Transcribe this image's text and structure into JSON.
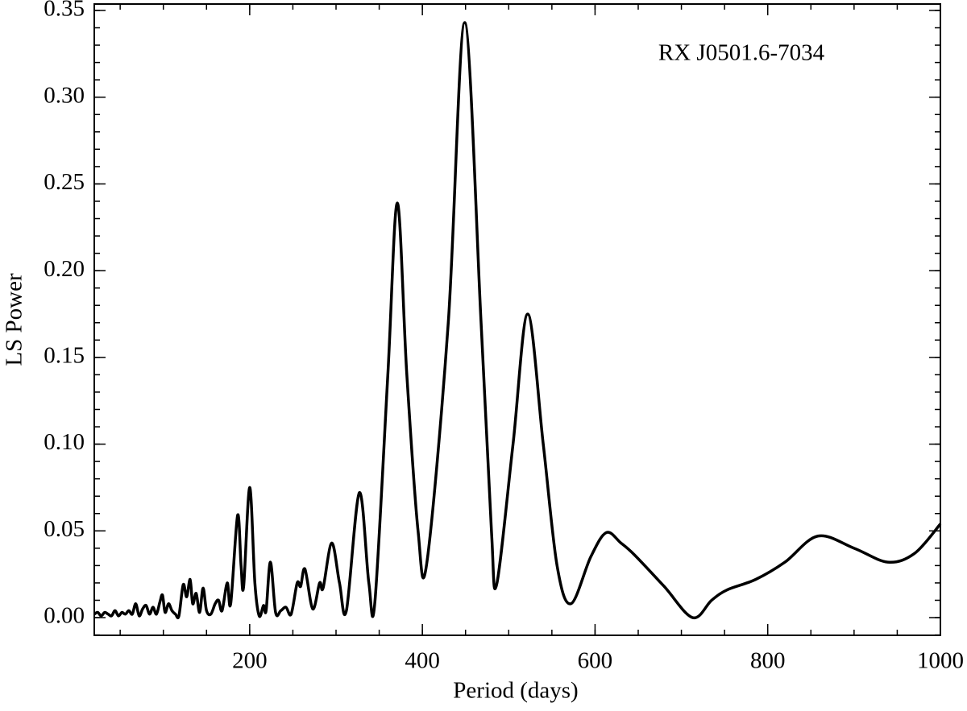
{
  "chart_data": {
    "type": "line",
    "xlabel": "Period (days)",
    "ylabel": "LS Power",
    "annotation": "RX J0501.6-7034",
    "x": [
      20,
      24,
      28,
      32,
      36,
      40,
      44,
      48,
      52,
      56,
      60,
      64,
      68,
      72,
      76,
      80,
      84,
      88,
      92,
      96,
      99,
      102,
      106,
      110,
      114,
      118,
      123,
      127,
      131,
      134,
      138,
      142,
      146,
      150,
      155,
      160,
      164,
      168,
      174,
      178,
      186,
      190,
      193,
      200,
      206,
      211,
      216,
      219,
      224,
      230,
      236,
      242,
      248,
      255,
      259,
      264,
      273,
      281,
      285,
      295,
      304,
      312,
      327,
      338,
      345,
      360,
      371,
      382,
      395,
      405,
      430,
      449,
      468,
      480,
      486,
      505,
      522,
      540,
      556,
      572,
      595,
      613,
      630,
      646,
      680,
      713,
      735,
      753,
      786,
      820,
      858,
      900,
      939,
      970,
      1000
    ],
    "series": [
      {
        "name": "LS Power",
        "color": "#000000",
        "values": [
          0.002,
          0.003,
          0.001,
          0.003,
          0.002,
          0.001,
          0.004,
          0.001,
          0.003,
          0.002,
          0.004,
          0.002,
          0.008,
          0.001,
          0.005,
          0.007,
          0.002,
          0.006,
          0.002,
          0.009,
          0.013,
          0.003,
          0.008,
          0.004,
          0.002,
          0.001,
          0.019,
          0.012,
          0.022,
          0.008,
          0.014,
          0.003,
          0.017,
          0.004,
          0.002,
          0.008,
          0.01,
          0.004,
          0.02,
          0.008,
          0.059,
          0.03,
          0.018,
          0.075,
          0.02,
          0.001,
          0.007,
          0.004,
          0.032,
          0.003,
          0.004,
          0.006,
          0.002,
          0.02,
          0.018,
          0.028,
          0.005,
          0.02,
          0.017,
          0.043,
          0.02,
          0.004,
          0.072,
          0.02,
          0.009,
          0.14,
          0.239,
          0.14,
          0.05,
          0.031,
          0.17,
          0.343,
          0.17,
          0.05,
          0.019,
          0.1,
          0.175,
          0.1,
          0.03,
          0.008,
          0.035,
          0.049,
          0.043,
          0.036,
          0.018,
          0.0,
          0.01,
          0.016,
          0.022,
          0.032,
          0.047,
          0.04,
          0.032,
          0.037,
          0.054
        ]
      }
    ],
    "xlim": [
      20,
      1000
    ],
    "ylim": [
      -0.0102,
      0.3537
    ],
    "xticks": [
      200,
      400,
      600,
      800,
      1000
    ],
    "yticks": [
      {
        "value": 0,
        "label": "0.00"
      },
      {
        "value": 0.05,
        "label": "0.05"
      },
      {
        "value": 0.1,
        "label": "0.10"
      },
      {
        "value": 0.15,
        "label": "0.15"
      },
      {
        "value": 0.2,
        "label": "0.20"
      },
      {
        "value": 0.25,
        "label": "0.25"
      },
      {
        "value": 0.3,
        "label": "0.30"
      },
      {
        "value": 0.35,
        "label": "0.35"
      }
    ],
    "grid": false
  }
}
